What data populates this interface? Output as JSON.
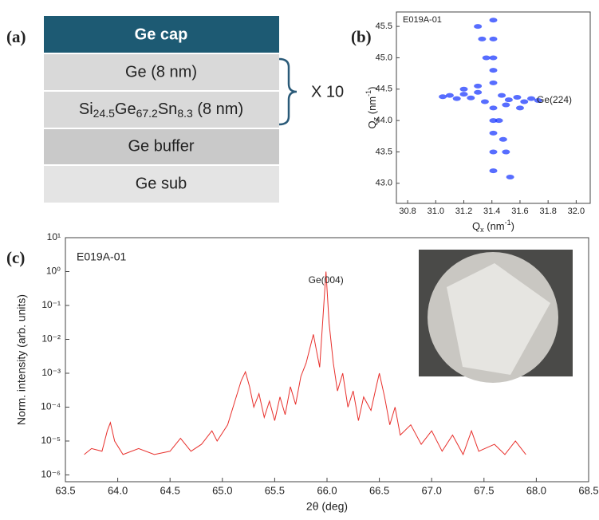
{
  "panel_labels": [
    "(a)",
    "(b)",
    "(c)"
  ],
  "layer_stack": {
    "layers": [
      "Ge cap",
      "Ge (8 nm)",
      [
        "Si",
        "24.5",
        "Ge",
        "67.2",
        "Sn",
        "8.3",
        " (8 nm)"
      ],
      "Ge buffer",
      "Ge sub"
    ],
    "repeat": "X 10"
  },
  "chart_data": [
    {
      "type": "scatter",
      "label": "E019A-01",
      "annotation": "Ge(224)",
      "xlabel": [
        "Q",
        "x",
        " (nm",
        "-1",
        ")"
      ],
      "ylabel": [
        "Q",
        "z",
        " (nm",
        "-1",
        ")"
      ],
      "color": "#1f3cff",
      "x": [
        31.41,
        31.41,
        31.41,
        31.41,
        31.41,
        31.41,
        31.41,
        31.41,
        31.41,
        31.41,
        31.3,
        31.33,
        31.36,
        31.45,
        31.48,
        31.5,
        31.53,
        31.05,
        31.1,
        31.15,
        31.2,
        31.25,
        31.3,
        31.35,
        31.47,
        31.52,
        31.58,
        31.63,
        31.68,
        31.73,
        31.2,
        31.3,
        31.5,
        31.6
      ],
      "y": [
        45.6,
        45.3,
        45.0,
        44.8,
        44.6,
        44.2,
        44.0,
        43.8,
        43.5,
        43.2,
        45.5,
        45.3,
        45.0,
        44.0,
        43.7,
        43.5,
        43.1,
        44.38,
        44.4,
        44.35,
        44.42,
        44.36,
        44.45,
        44.3,
        44.4,
        44.33,
        44.37,
        44.3,
        44.35,
        44.32,
        44.5,
        44.55,
        44.25,
        44.2
      ],
      "xlim": [
        30.72,
        32.1
      ],
      "xticks": [
        30.8,
        {
          "value": 31,
          "label": "31.0"
        },
        31.2,
        31.4,
        31.6,
        31.8,
        {
          "value": 32,
          "label": "32.0"
        }
      ],
      "ylim": [
        42.68,
        45.73
      ],
      "yticks": [
        {
          "value": 43,
          "label": "43.0"
        },
        43.5,
        {
          "value": 44,
          "label": "44.0"
        },
        44.5,
        {
          "value": 45,
          "label": "45.0"
        },
        45.5
      ]
    },
    {
      "type": "line",
      "log_y": true,
      "color": "#e8302c",
      "label": "E019A-01",
      "annotation": "Ge(004)",
      "xlabel": "2θ (deg)",
      "ylabel": "Norm. intensity (arb. units)",
      "x": [
        63.68,
        63.75,
        63.85,
        63.9,
        63.93,
        63.97,
        64.05,
        64.2,
        64.35,
        64.5,
        64.6,
        64.7,
        64.8,
        64.9,
        64.95,
        65.05,
        65.12,
        65.18,
        65.22,
        65.26,
        65.3,
        65.35,
        65.4,
        65.45,
        65.5,
        65.55,
        65.6,
        65.65,
        65.7,
        65.75,
        65.8,
        65.87,
        65.93,
        65.96,
        65.99,
        66.02,
        66.06,
        66.1,
        66.15,
        66.2,
        66.25,
        66.3,
        66.35,
        66.42,
        66.47,
        66.5,
        66.55,
        66.6,
        66.65,
        66.7,
        66.8,
        66.9,
        67.0,
        67.1,
        67.2,
        67.3,
        67.38,
        67.45,
        67.6,
        67.7,
        67.8,
        67.9
      ],
      "values": [
        4e-06,
        6e-06,
        5e-06,
        2e-05,
        3.5e-05,
        1e-05,
        4e-06,
        6e-06,
        4e-06,
        5e-06,
        1.2e-05,
        5e-06,
        8e-06,
        2e-05,
        1e-05,
        3e-05,
        0.00015,
        0.0006,
        0.0011,
        0.0004,
        0.0001,
        0.00025,
        5e-05,
        0.00015,
        4e-05,
        0.0002,
        6e-05,
        0.0004,
        0.00012,
        0.0008,
        0.002,
        0.014,
        0.0015,
        0.04,
        1.0,
        0.03,
        0.002,
        0.0003,
        0.001,
        0.0001,
        0.0003,
        4e-05,
        0.0002,
        8e-05,
        0.0004,
        0.001,
        0.0002,
        3e-05,
        0.0001,
        1.5e-05,
        3e-05,
        8e-06,
        2e-05,
        5e-06,
        1.5e-05,
        4e-06,
        2e-05,
        5e-06,
        8e-06,
        4e-06,
        1e-05,
        4e-06
      ],
      "xlim": [
        63.5,
        68.5
      ],
      "xticks": [
        63.5,
        {
          "value": 64,
          "label": "64.0"
        },
        64.5,
        {
          "value": 65,
          "label": "65.0"
        },
        65.5,
        {
          "value": 66,
          "label": "66.0"
        },
        66.5,
        {
          "value": 67,
          "label": "67.0"
        },
        67.5,
        {
          "value": 68,
          "label": "68.0"
        },
        68.5
      ],
      "ylim": [
        6.3e-07,
        10
      ],
      "yticks": [
        {
          "value": 1e-06,
          "label": "10⁻⁶"
        },
        {
          "value": 1e-05,
          "label": "10⁻⁵"
        },
        {
          "value": 0.0001,
          "label": "10⁻⁴"
        },
        {
          "value": 0.001,
          "label": "10⁻³"
        },
        {
          "value": 0.01,
          "label": "10⁻²"
        },
        {
          "value": 0.1,
          "label": "10⁻¹"
        },
        {
          "value": 1,
          "label": "10⁰"
        },
        {
          "value": 10,
          "label": "10¹"
        }
      ]
    }
  ]
}
